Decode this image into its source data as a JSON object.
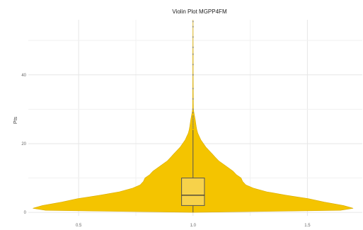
{
  "chart_data": {
    "type": "violin",
    "title": "Violin Plot MGPP4FM",
    "xlabel": "",
    "ylabel": "Pts",
    "xlim": [
      0.28,
      1.74
    ],
    "ylim": [
      -1,
      56
    ],
    "x_ticks": [
      "0.5",
      "1.0",
      "1.5"
    ],
    "x_tick_values": [
      0.5,
      1.0,
      1.5
    ],
    "y_ticks": [
      "0",
      "20",
      "40"
    ],
    "y_tick_values": [
      0,
      20,
      40
    ],
    "grid": true,
    "colors": {
      "violin_fill": "#f4c400",
      "box_fill": "#f7d24a",
      "outline": "#555555"
    },
    "violin": {
      "center": 1.0,
      "max_half_width": 0.7,
      "density_profile": [
        [
          0,
          0.0
        ],
        [
          0.6,
          0.92
        ],
        [
          1.2,
          1.0
        ],
        [
          2,
          0.94
        ],
        [
          3,
          0.82
        ],
        [
          4,
          0.72
        ],
        [
          5,
          0.58
        ],
        [
          6,
          0.46
        ],
        [
          7,
          0.38
        ],
        [
          8,
          0.33
        ],
        [
          9,
          0.31
        ],
        [
          10,
          0.3
        ],
        [
          11,
          0.27
        ],
        [
          12,
          0.25
        ],
        [
          13,
          0.22
        ],
        [
          14,
          0.19
        ],
        [
          15,
          0.16
        ],
        [
          16,
          0.14
        ],
        [
          17,
          0.12
        ],
        [
          18,
          0.1
        ],
        [
          19,
          0.08
        ],
        [
          20,
          0.065
        ],
        [
          21,
          0.05
        ],
        [
          22,
          0.04
        ],
        [
          23,
          0.03
        ],
        [
          24,
          0.024
        ],
        [
          25,
          0.02
        ],
        [
          26,
          0.017
        ],
        [
          27,
          0.014
        ],
        [
          28,
          0.01
        ],
        [
          29,
          0.006
        ],
        [
          30,
          0.003
        ],
        [
          32,
          0.002
        ],
        [
          35,
          0.0015
        ],
        [
          40,
          0.0012
        ],
        [
          45,
          0.001
        ],
        [
          50,
          0.0008
        ],
        [
          55,
          0.0005
        ],
        [
          56,
          0.0
        ]
      ]
    },
    "box": {
      "q1": 2,
      "median": 5,
      "q3": 10,
      "whisker_low": 0,
      "whisker_high": 24,
      "half_width": 0.05
    },
    "outliers": [
      24.5,
      25,
      25.5,
      26,
      26.5,
      27,
      27.5,
      28,
      29,
      30,
      33,
      36,
      40,
      43,
      46,
      48,
      51,
      54,
      55.5
    ]
  }
}
